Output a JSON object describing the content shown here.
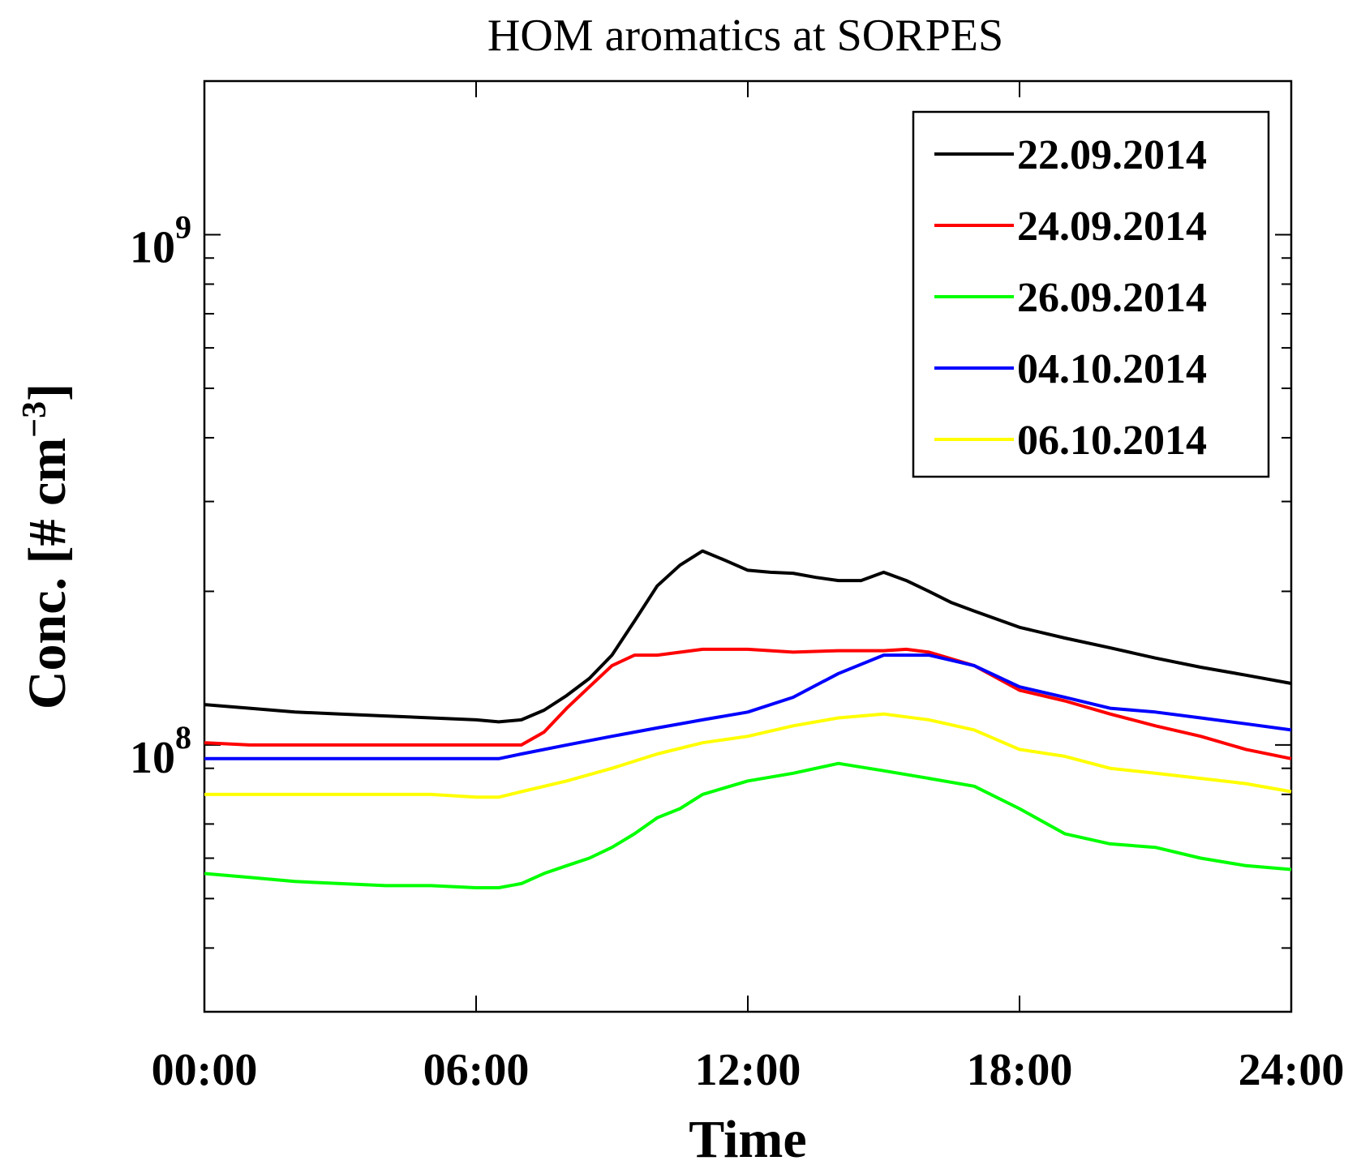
{
  "chart_data": {
    "type": "line",
    "title": "HOM aromatics at SORPES",
    "xlabel": "Time",
    "ylabel": "Conc. [# cm",
    "ylabel_sup": "−3",
    "ylabel_end": "]",
    "yscale": "log",
    "xlim": [
      0,
      24
    ],
    "ylim": [
      30000000,
      2000000000
    ],
    "xticks": [
      0,
      6,
      12,
      18,
      24
    ],
    "xtick_labels": [
      "00:00",
      "06:00",
      "12:00",
      "18:00",
      "24:00"
    ],
    "yticks": [
      {
        "value": 100000000,
        "base": "10",
        "exp": "8"
      },
      {
        "value": 1000000000,
        "base": "10",
        "exp": "9"
      }
    ],
    "grid": false,
    "legend_position": "top-right",
    "series": [
      {
        "name": "22.09.2014",
        "color": "#000000",
        "x": [
          0,
          1,
          2,
          3,
          4,
          5,
          6,
          6.5,
          7,
          7.5,
          8,
          8.5,
          9,
          9.5,
          10,
          10.5,
          11,
          11.5,
          12,
          12.5,
          13,
          13.5,
          14,
          14.5,
          15,
          15.5,
          16,
          16.5,
          17,
          18,
          19,
          20,
          21,
          22,
          23,
          24
        ],
        "y": [
          120000000,
          118000000,
          116000000,
          115000000,
          114000000,
          113000000,
          112000000,
          111000000,
          112000000,
          117000000,
          125000000,
          135000000,
          150000000,
          175000000,
          205000000,
          225000000,
          240000000,
          230000000,
          220000000,
          218000000,
          217000000,
          213000000,
          210000000,
          210000000,
          218000000,
          210000000,
          200000000,
          190000000,
          183000000,
          170000000,
          162000000,
          155000000,
          148000000,
          142000000,
          137000000,
          132000000
        ]
      },
      {
        "name": "24.09.2014",
        "color": "#ff0000",
        "x": [
          0,
          1,
          2,
          3,
          4,
          5,
          6,
          7,
          7.5,
          8,
          8.5,
          9,
          9.5,
          10,
          11,
          12,
          13,
          14,
          15,
          15.5,
          16,
          17,
          18,
          19,
          20,
          21,
          22,
          23,
          24
        ],
        "y": [
          101000000,
          100000000,
          100000000,
          100000000,
          100000000,
          100000000,
          100000000,
          100000000,
          106000000,
          118000000,
          130000000,
          143000000,
          150000000,
          150000000,
          154000000,
          154000000,
          152000000,
          153000000,
          153000000,
          154000000,
          152000000,
          143000000,
          128000000,
          122000000,
          115000000,
          109000000,
          104000000,
          98000000,
          94000000
        ]
      },
      {
        "name": "26.09.2014",
        "color": "#00ff00",
        "x": [
          0,
          1,
          2,
          3,
          4,
          5,
          6,
          6.5,
          7,
          7.5,
          8,
          8.5,
          9,
          9.5,
          10,
          10.5,
          11,
          12,
          13,
          14,
          15,
          16,
          17,
          18,
          19,
          20,
          21,
          22,
          23,
          24
        ],
        "y": [
          56000000,
          55000000,
          54000000,
          53500000,
          53000000,
          53000000,
          52500000,
          52500000,
          53500000,
          56000000,
          58000000,
          60000000,
          63000000,
          67000000,
          72000000,
          75000000,
          80000000,
          85000000,
          88000000,
          92000000,
          89000000,
          86000000,
          83000000,
          75000000,
          67000000,
          64000000,
          63000000,
          60000000,
          58000000,
          57000000
        ]
      },
      {
        "name": "04.10.2014",
        "color": "#0000ff",
        "x": [
          0,
          1,
          2,
          3,
          4,
          5,
          6,
          6.5,
          7,
          8,
          9,
          10,
          11,
          12,
          13,
          14,
          15,
          16,
          17,
          18,
          19,
          20,
          21,
          22,
          23,
          24
        ],
        "y": [
          94000000,
          94000000,
          94000000,
          94000000,
          94000000,
          94000000,
          94000000,
          94000000,
          96000000,
          100000000,
          104000000,
          108000000,
          112000000,
          116000000,
          124000000,
          138000000,
          150000000,
          150000000,
          143000000,
          130000000,
          124000000,
          118000000,
          116000000,
          113000000,
          110000000,
          107000000
        ]
      },
      {
        "name": "06.10.2014",
        "color": "#ffff00",
        "x": [
          0,
          1,
          2,
          3,
          4,
          5,
          6,
          6.5,
          7,
          8,
          9,
          10,
          11,
          12,
          13,
          14,
          15,
          16,
          17,
          18,
          19,
          20,
          21,
          22,
          23,
          24
        ],
        "y": [
          80000000,
          80000000,
          80000000,
          80000000,
          80000000,
          80000000,
          79000000,
          79000000,
          81000000,
          85000000,
          90000000,
          96000000,
          101000000,
          104000000,
          109000000,
          113000000,
          115000000,
          112000000,
          107000000,
          98000000,
          95000000,
          90000000,
          88000000,
          86000000,
          84000000,
          81000000
        ]
      }
    ]
  }
}
